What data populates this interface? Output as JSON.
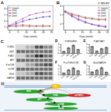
{
  "chart_data": [
    {
      "type": "line",
      "title": "A",
      "xlabel": "Days (week)",
      "x": [
        0,
        4,
        8,
        12,
        16,
        20,
        24
      ],
      "series": [
        {
          "name": "Control",
          "color": "#999999",
          "marker": "circle",
          "values": [
            5.1,
            5.0,
            5.1,
            5.0,
            5.1,
            5.0,
            5.1
          ]
        },
        {
          "name": "Diet1",
          "color": "#cc55cc",
          "marker": "square",
          "values": [
            5.2,
            5.8,
            6.3,
            6.9,
            7.2,
            7.4,
            7.5
          ]
        },
        {
          "name": "Diet2",
          "color": "#5555cc",
          "marker": "triangle",
          "values": [
            5.1,
            5.5,
            5.9,
            6.2,
            6.4,
            6.6,
            6.7
          ]
        },
        {
          "name": "Diet3",
          "color": "#cc5555",
          "marker": "diamond",
          "values": [
            5.1,
            5.2,
            5.3,
            5.2,
            5.1,
            5.2,
            5.1
          ]
        }
      ],
      "xlim": [
        -1,
        26
      ],
      "ylim": [
        4.5,
        8.5
      ],
      "xticks": [
        0,
        5,
        10,
        15,
        20,
        25
      ],
      "yticks": [
        5,
        6,
        7,
        8
      ],
      "legend": "upper left"
    },
    {
      "type": "line",
      "title": "B",
      "xlabel": "Days (week)",
      "x": [
        0,
        4,
        8,
        12,
        16,
        20,
        24
      ],
      "series": [
        {
          "name": "Control",
          "color": "#999999",
          "marker": "circle",
          "values": [
            5.4,
            5.1,
            4.9,
            4.7,
            4.6,
            4.5,
            4.5
          ]
        },
        {
          "name": "Diet1",
          "color": "#cc55cc",
          "marker": "square",
          "values": [
            5.3,
            4.9,
            4.5,
            4.2,
            3.9,
            3.8,
            3.7
          ]
        },
        {
          "name": "Diet2",
          "color": "#5555cc",
          "marker": "triangle",
          "values": [
            5.3,
            4.8,
            4.4,
            4.1,
            3.9,
            3.7,
            3.6
          ]
        },
        {
          "name": "Diet3",
          "color": "#cc5555",
          "marker": "diamond",
          "values": [
            5.3,
            5.0,
            4.8,
            4.6,
            4.5,
            4.4,
            4.4
          ]
        }
      ],
      "xlim": [
        -1,
        26
      ],
      "ylim": [
        3.3,
        6.0
      ],
      "xticks": [
        0,
        5,
        10,
        15,
        20,
        25
      ],
      "yticks": [
        4,
        5,
        6
      ],
      "legend": "upper right",
      "annotations": [
        "C WILEY"
      ]
    },
    {
      "type": "heatmap",
      "title": "C",
      "categories": [
        "P-IRS1",
        "IRS1",
        "P-AKT",
        "AKT",
        "P-mTOR",
        "mTOR",
        "Glut4",
        "GAPDH"
      ],
      "cells": [
        [
          0.25,
          0.4,
          0.75,
          0.55
        ],
        [
          0.65,
          0.65,
          0.65,
          0.65
        ],
        [
          0.3,
          0.55,
          0.85,
          0.65
        ],
        [
          0.65,
          0.65,
          0.65,
          0.65
        ],
        [
          0.25,
          0.45,
          0.65,
          0.75
        ],
        [
          0.65,
          0.65,
          0.65,
          0.65
        ],
        [
          0.35,
          0.45,
          0.75,
          0.65
        ],
        [
          0.65,
          0.65,
          0.65,
          0.65
        ]
      ]
    },
    {
      "type": "bar",
      "title": "D",
      "subtitle": "P-IRS1/IRS1",
      "categories": [
        "Con",
        "Met",
        "HFD",
        "HFD+M"
      ],
      "values": [
        0.6,
        1.8,
        2.6,
        1.2
      ],
      "errors": [
        0.12,
        0.18,
        0.22,
        0.15
      ],
      "color": "#999999",
      "ylim": [
        0,
        3.2
      ],
      "yticks": [
        0,
        1,
        2,
        3
      ]
    },
    {
      "type": "bar",
      "title": "E",
      "subtitle": "P-AKT/AKT",
      "categories": [
        "Con",
        "Met",
        "HFD",
        "HFD+M"
      ],
      "values": [
        2.2,
        0.7,
        1.5,
        1.9
      ],
      "errors": [
        0.18,
        0.12,
        0.18,
        0.16
      ],
      "color": "#999999",
      "ylim": [
        0,
        3.2
      ],
      "yticks": [
        0,
        1,
        2,
        3
      ]
    },
    {
      "type": "bar",
      "title": "F",
      "subtitle": "P-mTOR/mTOR",
      "categories": [
        "Con",
        "Met",
        "HFD",
        "HFD+M"
      ],
      "values": [
        0.5,
        1.6,
        2.2,
        1.3
      ],
      "errors": [
        0.1,
        0.16,
        0.2,
        0.13
      ],
      "color": "#999999",
      "ylim": [
        0,
        3.2
      ],
      "yticks": [
        0,
        1,
        2,
        3
      ]
    },
    {
      "type": "bar",
      "title": "G",
      "subtitle": "Glut4/GAPDH",
      "categories": [
        "Con",
        "Met",
        "HFD",
        "HFD+M"
      ],
      "values": [
        0.9,
        1.5,
        2.3,
        0.8
      ],
      "errors": [
        0.15,
        0.18,
        0.22,
        0.11
      ],
      "color": "#999999",
      "ylim": [
        0,
        3.2
      ],
      "yticks": [
        0,
        1,
        2,
        3
      ]
    },
    {
      "type": "diagram",
      "title": "H",
      "annotations": [
        "R",
        "IRS1",
        "PI3K",
        "AKT",
        "mTOR",
        "Glut4",
        "mTORC1"
      ],
      "colors": [
        "#ffcc00",
        "#22aa22",
        "#22aa22",
        "#22aa22",
        "#22aa22",
        "#22aa22",
        "#dd2222"
      ],
      "color": "#88aacc"
    }
  ]
}
